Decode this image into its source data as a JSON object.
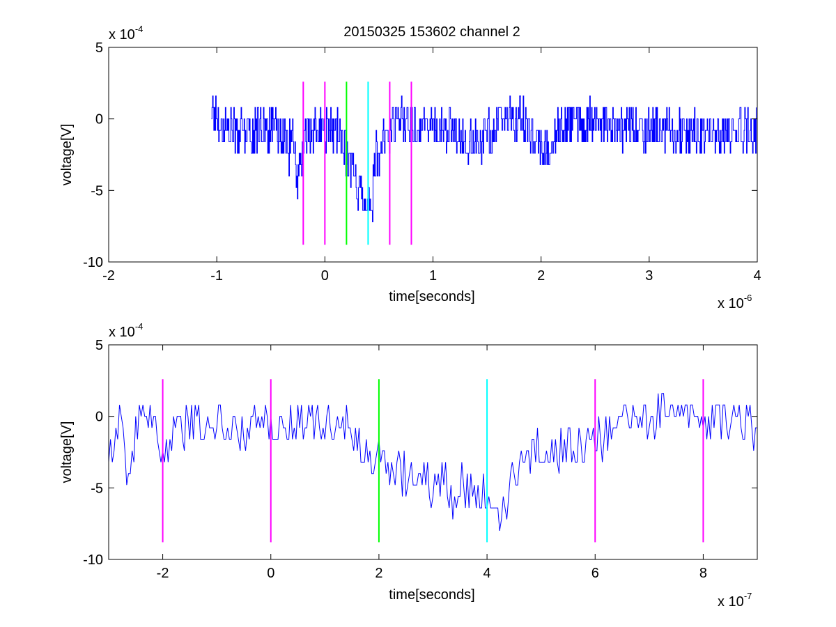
{
  "figure": {
    "title": "20150325 153602 channel 2"
  },
  "chart_data": [
    {
      "type": "line",
      "title": "20150325 153602 channel 2",
      "xlabel": "time[seconds]",
      "ylabel": "voltage[V]",
      "x_exponent_label": "x 10",
      "x_exponent": "-6",
      "y_exponent_label": "x 10",
      "y_exponent": "-4",
      "xlim": [
        -2,
        4
      ],
      "ylim": [
        -10,
        5
      ],
      "xticks": [
        -2,
        -1,
        0,
        1,
        2,
        3,
        4
      ],
      "xtick_labels": [
        "-2",
        "-1",
        "0",
        "1",
        "2",
        "3",
        "4"
      ],
      "yticks": [
        -10,
        -5,
        0,
        5
      ],
      "ytick_labels": [
        "-10",
        "-5",
        "0",
        "5"
      ],
      "grid": false,
      "series": [
        {
          "color": "#0000ff",
          "x_range": [
            -1.05,
            3.99
          ],
          "points": [
            [
              -1.05,
              0.8
            ],
            [
              -0.95,
              -0.5
            ],
            [
              -0.85,
              -0.8
            ],
            [
              -0.7,
              -1
            ],
            [
              -0.6,
              -0.6
            ],
            [
              -0.5,
              -0.8
            ],
            [
              -0.4,
              -1.2
            ],
            [
              -0.3,
              -1.5
            ],
            [
              -0.25,
              -4.8
            ],
            [
              -0.2,
              -1.6
            ],
            [
              -0.1,
              -0.9
            ],
            [
              0,
              -0.8
            ],
            [
              0.1,
              -1
            ],
            [
              0.16,
              -1.2
            ],
            [
              0.2,
              -2.4
            ],
            [
              0.24,
              -3.2
            ],
            [
              0.28,
              -4.2
            ],
            [
              0.32,
              -5
            ],
            [
              0.36,
              -5.3
            ],
            [
              0.4,
              -5.5
            ],
            [
              0.42,
              -6.5
            ],
            [
              0.44,
              -5
            ],
            [
              0.47,
              -2.5
            ],
            [
              0.5,
              -3.2
            ],
            [
              0.55,
              -1.5
            ],
            [
              0.6,
              -0.8
            ],
            [
              0.7,
              0
            ],
            [
              0.8,
              -0.3
            ],
            [
              0.9,
              -0.4
            ],
            [
              1,
              -0.6
            ],
            [
              1.1,
              -0.8
            ],
            [
              1.2,
              -1.1
            ],
            [
              1.3,
              -1.5
            ],
            [
              1.4,
              -1.8
            ],
            [
              1.5,
              -0.9
            ],
            [
              1.6,
              -0.4
            ],
            [
              1.7,
              0.1
            ],
            [
              1.8,
              0.3
            ],
            [
              1.9,
              -1
            ],
            [
              2.05,
              -2.5
            ],
            [
              2.1,
              -1.5
            ],
            [
              2.2,
              -0.6
            ],
            [
              2.3,
              -0.2
            ],
            [
              2.4,
              -0.3
            ],
            [
              2.5,
              0
            ],
            [
              2.6,
              -0.2
            ],
            [
              2.7,
              -0.9
            ],
            [
              2.8,
              -0.6
            ],
            [
              2.9,
              -0.4
            ],
            [
              3,
              -0.8
            ],
            [
              3.1,
              -0.4
            ],
            [
              3.2,
              -1
            ],
            [
              3.3,
              -0.8
            ],
            [
              3.4,
              -0.9
            ],
            [
              3.5,
              -1
            ],
            [
              3.6,
              -1.4
            ],
            [
              3.7,
              -1.1
            ],
            [
              3.8,
              -0.9
            ],
            [
              3.9,
              -0.8
            ],
            [
              3.99,
              -1
            ]
          ],
          "noise": [
            -1.5,
            1.5
          ]
        }
      ],
      "markers": [
        {
          "x": -0.2,
          "color": "#ff00ff"
        },
        {
          "x": 0.0,
          "color": "#ff00ff"
        },
        {
          "x": 0.2,
          "color": "#00ff00"
        },
        {
          "x": 0.4,
          "color": "#00ffff"
        },
        {
          "x": 0.6,
          "color": "#ff00ff"
        },
        {
          "x": 0.8,
          "color": "#ff00ff"
        }
      ],
      "marker_y_range": [
        -8.8,
        2.6
      ]
    },
    {
      "type": "line",
      "title": "",
      "xlabel": "time[seconds]",
      "ylabel": "voltage[V]",
      "x_exponent_label": "x 10",
      "x_exponent": "-7",
      "y_exponent_label": "x 10",
      "y_exponent": "-4",
      "xlim": [
        -3,
        9
      ],
      "ylim": [
        -10,
        5
      ],
      "xticks": [
        -2,
        0,
        2,
        4,
        6,
        8
      ],
      "xtick_labels": [
        "-2",
        "0",
        "2",
        "4",
        "6",
        "8"
      ],
      "yticks": [
        -10,
        -5,
        0,
        5
      ],
      "ytick_labels": [
        "-10",
        "-5",
        "0",
        "5"
      ],
      "grid": false,
      "series": [
        {
          "color": "#0000ff",
          "x_range": [
            -3,
            9
          ],
          "points": [
            [
              -3,
              -2.5
            ],
            [
              -2.8,
              -0.5
            ],
            [
              -2.6,
              -4.8
            ],
            [
              -2.5,
              -0.5
            ],
            [
              -2.2,
              -0.8
            ],
            [
              -2,
              -2.3
            ],
            [
              -1.5,
              -0.5
            ],
            [
              -1,
              -0.3
            ],
            [
              -0.5,
              -0.8
            ],
            [
              -0.2,
              -0.2
            ],
            [
              0,
              -0.5
            ],
            [
              0.5,
              -0.4
            ],
            [
              1,
              -0.4
            ],
            [
              1.4,
              -0.2
            ],
            [
              1.5,
              -1.5
            ],
            [
              1.7,
              -2.7
            ],
            [
              2,
              -3.3
            ],
            [
              2.2,
              -3.8
            ],
            [
              2.6,
              -4.3
            ],
            [
              3,
              -4.8
            ],
            [
              3.5,
              -4.8
            ],
            [
              3.9,
              -5.2
            ],
            [
              4.1,
              -5.5
            ],
            [
              4.3,
              -7.2
            ],
            [
              4.4,
              -5
            ],
            [
              4.6,
              -3.3
            ],
            [
              5,
              -2.2
            ],
            [
              5.5,
              -2.5
            ],
            [
              6,
              -1.5
            ],
            [
              6.5,
              -0.2
            ],
            [
              7,
              -0.2
            ],
            [
              7.5,
              0.5
            ],
            [
              8,
              -0.5
            ],
            [
              8.5,
              -0.2
            ],
            [
              9,
              -0.5
            ]
          ],
          "noise": [
            -1.5,
            1.5
          ]
        }
      ],
      "markers": [
        {
          "x": -2,
          "color": "#ff00ff"
        },
        {
          "x": 0,
          "color": "#ff00ff"
        },
        {
          "x": 2,
          "color": "#00ff00"
        },
        {
          "x": 4,
          "color": "#00ffff"
        },
        {
          "x": 6,
          "color": "#ff00ff"
        },
        {
          "x": 8,
          "color": "#ff00ff"
        }
      ],
      "marker_y_range": [
        -8.8,
        2.6
      ]
    }
  ]
}
